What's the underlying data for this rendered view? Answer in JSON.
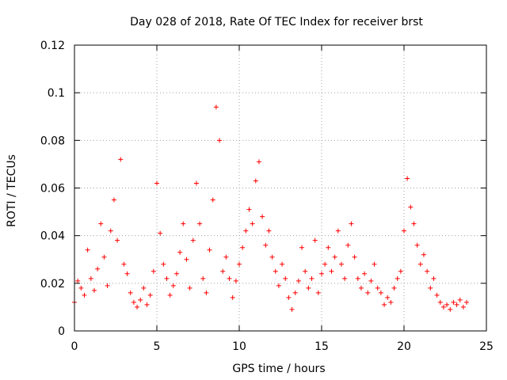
{
  "chart_data": {
    "type": "scatter",
    "title": "Day 028 of 2018, Rate Of TEC Index for receiver brst",
    "xlabel": "GPS time / hours",
    "ylabel": "ROTI / TECUs",
    "xlim": [
      0,
      25
    ],
    "ylim": [
      0,
      0.12
    ],
    "grid": true,
    "marker": "+",
    "color": "#ff0000",
    "x_ticks": [
      0,
      5,
      10,
      15,
      20,
      25
    ],
    "x_tick_labels": [
      "0",
      "5",
      "10",
      "15",
      "20",
      "25"
    ],
    "y_ticks": [
      0,
      0.02,
      0.04,
      0.06,
      0.08,
      0.1,
      0.12
    ],
    "y_tick_labels": [
      "0",
      "0.02",
      "0.04",
      "0.06",
      "0.08",
      "0.1",
      "0.12"
    ],
    "series": [
      {
        "name": "ROTI",
        "x": [
          0.0,
          0.2,
          0.4,
          0.6,
          0.8,
          1.0,
          1.2,
          1.4,
          1.6,
          1.8,
          2.0,
          2.2,
          2.4,
          2.6,
          2.8,
          3.0,
          3.2,
          3.4,
          3.6,
          3.8,
          4.0,
          4.2,
          4.4,
          4.6,
          4.8,
          5.0,
          5.2,
          5.4,
          5.6,
          5.8,
          6.0,
          6.2,
          6.4,
          6.6,
          6.8,
          7.0,
          7.2,
          7.4,
          7.6,
          7.8,
          8.0,
          8.2,
          8.4,
          8.6,
          8.8,
          9.0,
          9.2,
          9.4,
          9.6,
          9.8,
          10.0,
          10.2,
          10.4,
          10.6,
          10.8,
          11.0,
          11.2,
          11.4,
          11.6,
          11.8,
          12.0,
          12.2,
          12.4,
          12.6,
          12.8,
          13.0,
          13.2,
          13.4,
          13.6,
          13.8,
          14.0,
          14.2,
          14.4,
          14.6,
          14.8,
          15.0,
          15.2,
          15.4,
          15.6,
          15.8,
          16.0,
          16.2,
          16.4,
          16.6,
          16.8,
          17.0,
          17.2,
          17.4,
          17.6,
          17.8,
          18.0,
          18.2,
          18.4,
          18.6,
          18.8,
          19.0,
          19.2,
          19.4,
          19.6,
          19.8,
          20.0,
          20.2,
          20.4,
          20.6,
          20.8,
          21.0,
          21.2,
          21.4,
          21.6,
          21.8,
          22.0,
          22.2,
          22.4,
          22.6,
          22.8,
          23.0,
          23.2,
          23.4,
          23.6,
          23.8
        ],
        "y": [
          0.012,
          0.021,
          0.018,
          0.015,
          0.034,
          0.022,
          0.017,
          0.026,
          0.045,
          0.031,
          0.019,
          0.042,
          0.055,
          0.038,
          0.072,
          0.028,
          0.024,
          0.016,
          0.012,
          0.01,
          0.013,
          0.018,
          0.011,
          0.015,
          0.025,
          0.062,
          0.041,
          0.028,
          0.022,
          0.015,
          0.019,
          0.024,
          0.033,
          0.045,
          0.03,
          0.018,
          0.038,
          0.062,
          0.045,
          0.022,
          0.016,
          0.034,
          0.055,
          0.094,
          0.08,
          0.025,
          0.031,
          0.022,
          0.014,
          0.021,
          0.028,
          0.035,
          0.042,
          0.051,
          0.045,
          0.063,
          0.071,
          0.048,
          0.036,
          0.042,
          0.031,
          0.025,
          0.019,
          0.028,
          0.022,
          0.014,
          0.009,
          0.016,
          0.021,
          0.035,
          0.025,
          0.018,
          0.022,
          0.038,
          0.016,
          0.024,
          0.028,
          0.035,
          0.025,
          0.031,
          0.042,
          0.028,
          0.022,
          0.036,
          0.045,
          0.031,
          0.022,
          0.018,
          0.024,
          0.016,
          0.021,
          0.028,
          0.018,
          0.016,
          0.011,
          0.014,
          0.012,
          0.018,
          0.022,
          0.025,
          0.042,
          0.064,
          0.052,
          0.045,
          0.036,
          0.028,
          0.032,
          0.025,
          0.018,
          0.022,
          0.015,
          0.012,
          0.01,
          0.011,
          0.009,
          0.012,
          0.011,
          0.013,
          0.01,
          0.012
        ]
      }
    ]
  }
}
